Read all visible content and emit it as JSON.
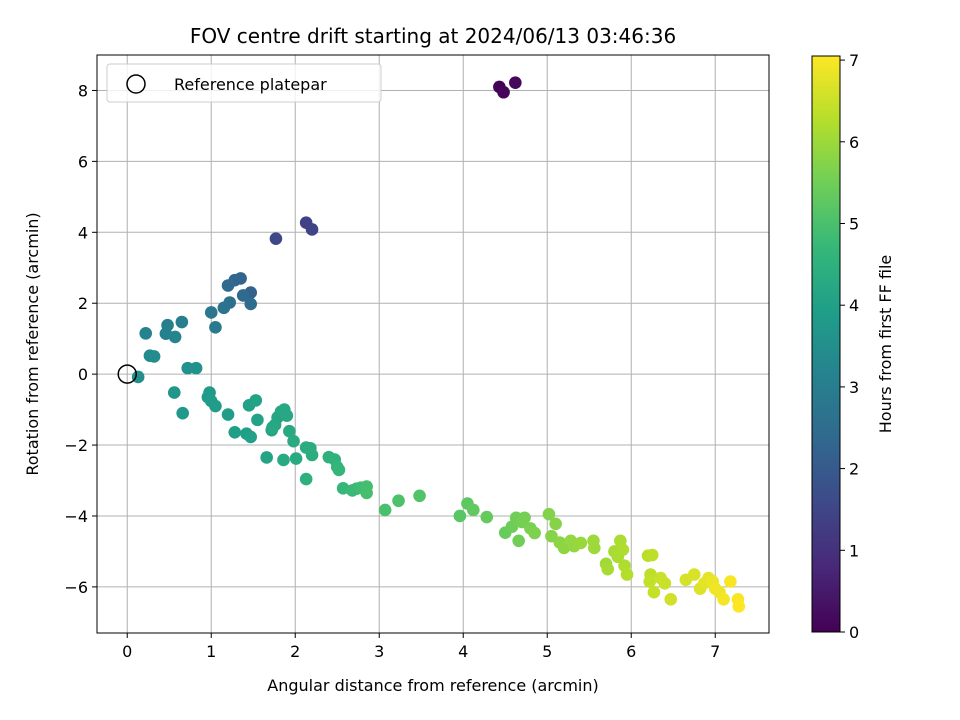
{
  "chart_data": {
    "type": "scatter",
    "title": "FOV centre drift starting at 2024/06/13 03:46:36",
    "xlabel": "Angular distance from reference (arcmin)",
    "ylabel": "Rotation from reference (arcmin)",
    "xlim": [
      -0.36,
      7.64
    ],
    "ylim": [
      -7.3,
      9.0
    ],
    "xticks": [
      0,
      1,
      2,
      3,
      4,
      5,
      6,
      7
    ],
    "yticks": [
      -6,
      -4,
      -2,
      0,
      2,
      4,
      6,
      8
    ],
    "grid": true,
    "legend": {
      "placement": "top-left",
      "entries": [
        "Reference platepar"
      ]
    },
    "reference_point": {
      "x": 0,
      "y": 0
    },
    "colorbar": {
      "label": "Hours from first FF file",
      "range": [
        0,
        7.05
      ],
      "ticks": [
        0,
        1,
        2,
        3,
        4,
        5,
        6,
        7
      ],
      "colormap": "viridis"
    },
    "colormap_stops": [
      "#440154",
      "#482878",
      "#3e4989",
      "#31688e",
      "#26828e",
      "#1f9e89",
      "#35b779",
      "#6ece58",
      "#b5de2b",
      "#fde725"
    ],
    "points": [
      {
        "x": 4.43,
        "y": 8.1,
        "t": 0.05
      },
      {
        "x": 4.48,
        "y": 7.95,
        "t": 0.1
      },
      {
        "x": 4.62,
        "y": 8.22,
        "t": 0.15
      },
      {
        "x": 2.13,
        "y": 4.27,
        "t": 1.4
      },
      {
        "x": 2.2,
        "y": 4.08,
        "t": 1.45
      },
      {
        "x": 1.77,
        "y": 3.82,
        "t": 1.55
      },
      {
        "x": 1.47,
        "y": 2.3,
        "t": 2.2
      },
      {
        "x": 1.35,
        "y": 2.7,
        "t": 2.25
      },
      {
        "x": 1.28,
        "y": 2.65,
        "t": 2.3
      },
      {
        "x": 1.38,
        "y": 2.22,
        "t": 2.4
      },
      {
        "x": 1.2,
        "y": 2.5,
        "t": 2.45
      },
      {
        "x": 1.47,
        "y": 1.98,
        "t": 2.5
      },
      {
        "x": 1.22,
        "y": 2.02,
        "t": 2.6
      },
      {
        "x": 1.15,
        "y": 1.87,
        "t": 2.7
      },
      {
        "x": 1.0,
        "y": 1.74,
        "t": 2.8
      },
      {
        "x": 1.05,
        "y": 1.32,
        "t": 2.9
      },
      {
        "x": 0.65,
        "y": 1.47,
        "t": 3.0
      },
      {
        "x": 0.48,
        "y": 1.38,
        "t": 3.05
      },
      {
        "x": 0.46,
        "y": 1.14,
        "t": 3.1
      },
      {
        "x": 0.22,
        "y": 1.15,
        "t": 3.15
      },
      {
        "x": 0.57,
        "y": 1.05,
        "t": 3.2
      },
      {
        "x": 0.27,
        "y": 0.52,
        "t": 3.35
      },
      {
        "x": 0.32,
        "y": 0.5,
        "t": 3.4
      },
      {
        "x": 0.13,
        "y": -0.08,
        "t": 3.5
      },
      {
        "x": 0.72,
        "y": 0.17,
        "t": 3.55
      },
      {
        "x": 0.82,
        "y": 0.17,
        "t": 3.6
      },
      {
        "x": 0.56,
        "y": -0.52,
        "t": 3.7
      },
      {
        "x": 0.66,
        "y": -1.1,
        "t": 3.75
      },
      {
        "x": 0.98,
        "y": -0.52,
        "t": 3.8
      },
      {
        "x": 0.96,
        "y": -0.65,
        "t": 3.8
      },
      {
        "x": 1.0,
        "y": -0.76,
        "t": 3.85
      },
      {
        "x": 1.05,
        "y": -0.9,
        "t": 3.85
      },
      {
        "x": 1.2,
        "y": -1.14,
        "t": 3.9
      },
      {
        "x": 1.28,
        "y": -1.64,
        "t": 3.95
      },
      {
        "x": 1.42,
        "y": -1.68,
        "t": 3.95
      },
      {
        "x": 1.47,
        "y": -1.77,
        "t": 4.0
      },
      {
        "x": 1.45,
        "y": -0.88,
        "t": 4.0
      },
      {
        "x": 1.53,
        "y": -0.74,
        "t": 4.05
      },
      {
        "x": 1.55,
        "y": -1.29,
        "t": 4.05
      },
      {
        "x": 1.66,
        "y": -2.35,
        "t": 4.1
      },
      {
        "x": 1.72,
        "y": -1.58,
        "t": 4.1
      },
      {
        "x": 1.76,
        "y": -1.43,
        "t": 4.15
      },
      {
        "x": 1.79,
        "y": -1.22,
        "t": 4.15
      },
      {
        "x": 1.83,
        "y": -1.06,
        "t": 4.15
      },
      {
        "x": 1.87,
        "y": -1.0,
        "t": 4.2
      },
      {
        "x": 1.9,
        "y": -1.17,
        "t": 4.2
      },
      {
        "x": 1.73,
        "y": -1.5,
        "t": 4.2
      },
      {
        "x": 1.86,
        "y": -2.42,
        "t": 4.25
      },
      {
        "x": 1.93,
        "y": -1.61,
        "t": 4.25
      },
      {
        "x": 1.98,
        "y": -1.89,
        "t": 4.3
      },
      {
        "x": 2.01,
        "y": -2.38,
        "t": 4.3
      },
      {
        "x": 2.13,
        "y": -2.07,
        "t": 4.35
      },
      {
        "x": 2.18,
        "y": -2.09,
        "t": 4.35
      },
      {
        "x": 2.2,
        "y": -2.28,
        "t": 4.4
      },
      {
        "x": 2.13,
        "y": -2.96,
        "t": 4.45
      },
      {
        "x": 2.4,
        "y": -2.34,
        "t": 4.5
      },
      {
        "x": 2.47,
        "y": -2.41,
        "t": 4.55
      },
      {
        "x": 2.5,
        "y": -2.62,
        "t": 4.6
      },
      {
        "x": 2.52,
        "y": -2.7,
        "t": 4.65
      },
      {
        "x": 2.57,
        "y": -3.22,
        "t": 4.7
      },
      {
        "x": 2.68,
        "y": -3.28,
        "t": 4.75
      },
      {
        "x": 2.73,
        "y": -3.23,
        "t": 4.8
      },
      {
        "x": 2.78,
        "y": -3.2,
        "t": 4.85
      },
      {
        "x": 2.85,
        "y": -3.17,
        "t": 4.9
      },
      {
        "x": 2.85,
        "y": -3.35,
        "t": 4.95
      },
      {
        "x": 3.07,
        "y": -3.83,
        "t": 5.0
      },
      {
        "x": 3.23,
        "y": -3.57,
        "t": 5.05
      },
      {
        "x": 3.48,
        "y": -3.43,
        "t": 5.1
      },
      {
        "x": 3.96,
        "y": -4.0,
        "t": 5.2
      },
      {
        "x": 4.05,
        "y": -3.65,
        "t": 5.25
      },
      {
        "x": 4.12,
        "y": -3.83,
        "t": 5.3
      },
      {
        "x": 4.28,
        "y": -4.03,
        "t": 5.35
      },
      {
        "x": 4.5,
        "y": -4.47,
        "t": 5.4
      },
      {
        "x": 4.58,
        "y": -4.3,
        "t": 5.45
      },
      {
        "x": 4.63,
        "y": -4.05,
        "t": 5.5
      },
      {
        "x": 4.66,
        "y": -4.7,
        "t": 5.5
      },
      {
        "x": 4.7,
        "y": -4.17,
        "t": 5.55
      },
      {
        "x": 4.73,
        "y": -4.05,
        "t": 5.55
      },
      {
        "x": 4.8,
        "y": -4.35,
        "t": 5.6
      },
      {
        "x": 4.85,
        "y": -4.48,
        "t": 5.65
      },
      {
        "x": 5.02,
        "y": -3.95,
        "t": 5.7
      },
      {
        "x": 5.05,
        "y": -4.57,
        "t": 5.75
      },
      {
        "x": 5.1,
        "y": -4.22,
        "t": 5.75
      },
      {
        "x": 5.15,
        "y": -4.75,
        "t": 5.8
      },
      {
        "x": 5.2,
        "y": -4.9,
        "t": 5.85
      },
      {
        "x": 5.28,
        "y": -4.7,
        "t": 5.9
      },
      {
        "x": 5.32,
        "y": -4.85,
        "t": 5.9
      },
      {
        "x": 5.4,
        "y": -4.76,
        "t": 5.95
      },
      {
        "x": 5.55,
        "y": -4.7,
        "t": 6.0
      },
      {
        "x": 5.56,
        "y": -4.9,
        "t": 6.0
      },
      {
        "x": 5.7,
        "y": -5.35,
        "t": 6.05
      },
      {
        "x": 5.72,
        "y": -5.5,
        "t": 6.1
      },
      {
        "x": 5.8,
        "y": -5.0,
        "t": 6.1
      },
      {
        "x": 5.84,
        "y": -5.15,
        "t": 6.15
      },
      {
        "x": 5.87,
        "y": -4.7,
        "t": 6.15
      },
      {
        "x": 5.9,
        "y": -4.95,
        "t": 6.2
      },
      {
        "x": 5.92,
        "y": -5.4,
        "t": 6.2
      },
      {
        "x": 5.95,
        "y": -5.65,
        "t": 6.25
      },
      {
        "x": 6.2,
        "y": -5.12,
        "t": 6.3
      },
      {
        "x": 6.25,
        "y": -5.1,
        "t": 6.35
      },
      {
        "x": 6.23,
        "y": -5.65,
        "t": 6.35
      },
      {
        "x": 6.22,
        "y": -5.85,
        "t": 6.4
      },
      {
        "x": 6.27,
        "y": -6.15,
        "t": 6.45
      },
      {
        "x": 6.35,
        "y": -5.75,
        "t": 6.5
      },
      {
        "x": 6.4,
        "y": -5.9,
        "t": 6.5
      },
      {
        "x": 6.47,
        "y": -6.35,
        "t": 6.55
      },
      {
        "x": 6.65,
        "y": -5.8,
        "t": 6.6
      },
      {
        "x": 6.75,
        "y": -5.65,
        "t": 6.65
      },
      {
        "x": 6.82,
        "y": -6.05,
        "t": 6.7
      },
      {
        "x": 6.87,
        "y": -5.9,
        "t": 6.75
      },
      {
        "x": 6.92,
        "y": -5.75,
        "t": 6.8
      },
      {
        "x": 6.97,
        "y": -5.85,
        "t": 6.85
      },
      {
        "x": 7.0,
        "y": -6.05,
        "t": 6.9
      },
      {
        "x": 7.05,
        "y": -6.15,
        "t": 6.9
      },
      {
        "x": 7.1,
        "y": -6.35,
        "t": 6.95
      },
      {
        "x": 7.18,
        "y": -5.85,
        "t": 7.0
      },
      {
        "x": 7.27,
        "y": -6.35,
        "t": 7.0
      },
      {
        "x": 7.28,
        "y": -6.55,
        "t": 7.05
      }
    ]
  }
}
